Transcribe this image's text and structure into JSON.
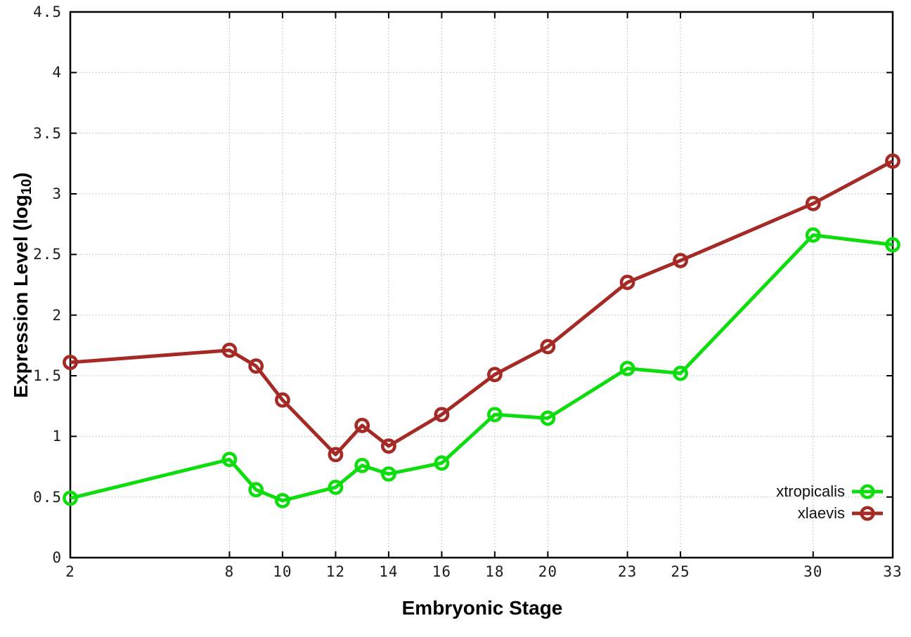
{
  "chart_data": {
    "type": "line",
    "title": "",
    "xlabel": "Embryonic Stage",
    "ylabel": {
      "prefix": "Expression Level (log",
      "subscript": "10",
      "suffix": ")"
    },
    "xlim": [
      2,
      33
    ],
    "ylim": [
      0,
      4.5
    ],
    "grid": true,
    "x": [
      2,
      8,
      9,
      10,
      12,
      13,
      14,
      16,
      18,
      20,
      23,
      25,
      30,
      33
    ],
    "series": [
      {
        "name": "xtropicalis",
        "color": "#0ddd0d",
        "marker": "open-circle",
        "values": [
          0.49,
          0.81,
          0.56,
          0.47,
          0.58,
          0.76,
          0.69,
          0.78,
          1.18,
          1.15,
          1.56,
          1.52,
          2.66,
          2.58
        ]
      },
      {
        "name": "xlaevis",
        "color": "#a52a25",
        "marker": "open-circle",
        "values": [
          1.61,
          1.71,
          1.58,
          1.3,
          0.85,
          1.09,
          0.92,
          1.18,
          1.51,
          1.74,
          2.27,
          2.45,
          2.92,
          3.27
        ]
      }
    ],
    "xticks": {
      "values": [
        2,
        8,
        10,
        12,
        14,
        16,
        18,
        20,
        23,
        25,
        30,
        33
      ],
      "labels": [
        "2",
        "8",
        "10",
        "12",
        "14",
        "16",
        "18",
        "20",
        "23",
        "25",
        "30",
        "33"
      ]
    },
    "yticks": {
      "values": [
        0,
        0.5,
        1,
        1.5,
        2,
        2.5,
        3,
        3.5,
        4,
        4.5
      ],
      "labels": [
        "0",
        "0.5",
        "1",
        "1.5",
        "2",
        "2.5",
        "3",
        "3.5",
        "4",
        "4.5"
      ]
    },
    "legend": {
      "position": "bottom-right",
      "entries": [
        "xtropicalis",
        "xlaevis"
      ]
    }
  },
  "colors": {
    "grid": "#b4b4b4",
    "border": "#000000",
    "tick_text": "#1c1c1c"
  }
}
